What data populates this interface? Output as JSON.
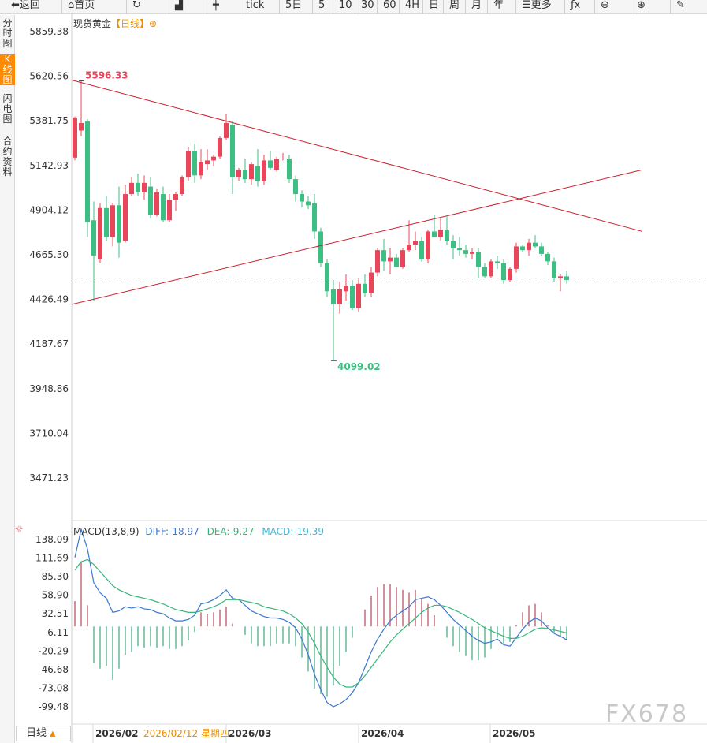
{
  "toolbar": {
    "items": [
      {
        "label": "返回",
        "icon": "back-icon"
      },
      {
        "label": "首页",
        "icon": "home-icon"
      },
      {
        "label": "",
        "icon": "refresh-icon"
      },
      {
        "label": "",
        "icon": "bar-chart-icon"
      },
      {
        "label": "",
        "icon": "candlestick-icon"
      },
      {
        "label": "tick"
      },
      {
        "label": "5日"
      },
      {
        "label": "5"
      },
      {
        "label": "10"
      },
      {
        "label": "30"
      },
      {
        "label": "60"
      },
      {
        "label": "4H"
      },
      {
        "label": "日"
      },
      {
        "label": "周"
      },
      {
        "label": "月"
      },
      {
        "label": "年"
      },
      {
        "label": "更多",
        "icon": "menu-icon"
      },
      {
        "label": "",
        "icon": "formula-icon"
      },
      {
        "label": "",
        "icon": "zoom-out-icon"
      },
      {
        "label": "",
        "icon": "zoom-in-icon"
      },
      {
        "label": "",
        "icon": "draw-icon"
      }
    ]
  },
  "side_tabs": [
    {
      "label": "分时图",
      "active": false
    },
    {
      "label": "K线图",
      "active": true
    },
    {
      "label": "闪电图",
      "active": false
    },
    {
      "label": "合约资料",
      "active": false
    }
  ],
  "chart": {
    "instrument": "现货黄金",
    "period_tag": "【日线】",
    "plus_icon": "add-circle-icon",
    "colors": {
      "up": "#e8475b",
      "down": "#3dbf83",
      "trendline": "#cc1f2f",
      "last_price": "#2e8ba3",
      "diff": "#3a78d0",
      "dea": "#38b57a"
    }
  },
  "macd": {
    "label": "MACD(13,8,9)",
    "diff": "DIFF:-18.97",
    "dea": "DEA:-9.27",
    "macd": "MACD:-19.39",
    "settings_icon": "sun-settings-icon"
  },
  "bottom": {
    "period_button": "日线",
    "arrow_icon": "triangle-up-icon",
    "crosshair_date": "2026/02/12 星期四"
  },
  "watermark": "FX678",
  "chart_data": [
    {
      "type": "candlestick",
      "title": "现货黄金【日线】",
      "y_ticks": [
        "5859.38",
        "5620.56",
        "5381.75",
        "5142.93",
        "4904.12",
        "4665.30",
        "4426.49",
        "4187.67",
        "3948.86",
        "3710.04",
        "3471.23"
      ],
      "ylim": [
        3471.23,
        5859.38
      ],
      "x_ticks": [
        "2026/02",
        "2026/03",
        "2026/04",
        "2026/05"
      ],
      "annotations": [
        {
          "label": "5596.33",
          "value": 5596.33,
          "kind": "high"
        },
        {
          "label": "4099.02",
          "value": 4099.02,
          "kind": "low"
        }
      ],
      "last_price": 4520,
      "trendlines": [
        {
          "from": [
            0,
            5600
          ],
          "to": [
            90,
            4790
          ],
          "color": "#cc1f2f"
        },
        {
          "from": [
            0,
            4400
          ],
          "to": [
            90,
            5120
          ],
          "color": "#cc1f2f"
        }
      ],
      "candles": [
        {
          "o": 5185,
          "h": 5405,
          "l": 5170,
          "c": 5400
        },
        {
          "o": 5330,
          "h": 5596.33,
          "l": 5300,
          "c": 5370
        },
        {
          "o": 5380,
          "h": 5390,
          "l": 4760,
          "c": 4840
        },
        {
          "o": 4850,
          "h": 4950,
          "l": 4420,
          "c": 4660
        },
        {
          "o": 4640,
          "h": 4940,
          "l": 4620,
          "c": 4915
        },
        {
          "o": 4915,
          "h": 4980,
          "l": 4740,
          "c": 4760
        },
        {
          "o": 4760,
          "h": 4940,
          "l": 4710,
          "c": 4930
        },
        {
          "o": 4930,
          "h": 5030,
          "l": 4650,
          "c": 4730
        },
        {
          "o": 4740,
          "h": 5040,
          "l": 4730,
          "c": 4990
        },
        {
          "o": 4990,
          "h": 5080,
          "l": 4980,
          "c": 5050
        },
        {
          "o": 5050,
          "h": 5100,
          "l": 4980,
          "c": 5000
        },
        {
          "o": 5000,
          "h": 5090,
          "l": 4960,
          "c": 5050
        },
        {
          "o": 5030,
          "h": 5080,
          "l": 4860,
          "c": 4880
        },
        {
          "o": 4880,
          "h": 5020,
          "l": 4870,
          "c": 5000
        },
        {
          "o": 4990,
          "h": 5030,
          "l": 4840,
          "c": 4850
        },
        {
          "o": 4850,
          "h": 4990,
          "l": 4840,
          "c": 4960
        },
        {
          "o": 4960,
          "h": 5000,
          "l": 4900,
          "c": 4990
        },
        {
          "o": 4990,
          "h": 5090,
          "l": 4980,
          "c": 5080
        },
        {
          "o": 5080,
          "h": 5240,
          "l": 5060,
          "c": 5220
        },
        {
          "o": 5220,
          "h": 5260,
          "l": 5050,
          "c": 5090
        },
        {
          "o": 5090,
          "h": 5230,
          "l": 5070,
          "c": 5160
        },
        {
          "o": 5150,
          "h": 5230,
          "l": 5120,
          "c": 5170
        },
        {
          "o": 5170,
          "h": 5200,
          "l": 5140,
          "c": 5190
        },
        {
          "o": 5190,
          "h": 5300,
          "l": 5180,
          "c": 5290
        },
        {
          "o": 5290,
          "h": 5420,
          "l": 5280,
          "c": 5370
        },
        {
          "o": 5360,
          "h": 5380,
          "l": 4990,
          "c": 5080
        },
        {
          "o": 5080,
          "h": 5130,
          "l": 5060,
          "c": 5120
        },
        {
          "o": 5120,
          "h": 5180,
          "l": 5050,
          "c": 5070
        },
        {
          "o": 5070,
          "h": 5160,
          "l": 5040,
          "c": 5150
        },
        {
          "o": 5140,
          "h": 5230,
          "l": 5030,
          "c": 5060
        },
        {
          "o": 5060,
          "h": 5200,
          "l": 5040,
          "c": 5170
        },
        {
          "o": 5170,
          "h": 5220,
          "l": 5120,
          "c": 5130
        },
        {
          "o": 5120,
          "h": 5190,
          "l": 5110,
          "c": 5180
        },
        {
          "o": 5180,
          "h": 5210,
          "l": 5170,
          "c": 5180
        },
        {
          "o": 5180,
          "h": 5200,
          "l": 5050,
          "c": 5070
        },
        {
          "o": 5070,
          "h": 5090,
          "l": 4950,
          "c": 4990
        },
        {
          "o": 4990,
          "h": 5010,
          "l": 4920,
          "c": 4950
        },
        {
          "o": 4950,
          "h": 4980,
          "l": 4910,
          "c": 4930
        },
        {
          "o": 4940,
          "h": 4990,
          "l": 4750,
          "c": 4790
        },
        {
          "o": 4790,
          "h": 4810,
          "l": 4600,
          "c": 4620
        },
        {
          "o": 4620,
          "h": 4640,
          "l": 4440,
          "c": 4470
        },
        {
          "o": 4480,
          "h": 4530,
          "l": 4099.02,
          "c": 4400
        },
        {
          "o": 4400,
          "h": 4520,
          "l": 4350,
          "c": 4480
        },
        {
          "o": 4470,
          "h": 4560,
          "l": 4420,
          "c": 4500
        },
        {
          "o": 4500,
          "h": 4530,
          "l": 4370,
          "c": 4380
        },
        {
          "o": 4380,
          "h": 4540,
          "l": 4360,
          "c": 4510
        },
        {
          "o": 4510,
          "h": 4560,
          "l": 4440,
          "c": 4460
        },
        {
          "o": 4460,
          "h": 4600,
          "l": 4440,
          "c": 4570
        },
        {
          "o": 4570,
          "h": 4700,
          "l": 4550,
          "c": 4690
        },
        {
          "o": 4690,
          "h": 4750,
          "l": 4580,
          "c": 4630
        },
        {
          "o": 4630,
          "h": 4700,
          "l": 4560,
          "c": 4650
        },
        {
          "o": 4650,
          "h": 4670,
          "l": 4600,
          "c": 4600
        },
        {
          "o": 4600,
          "h": 4700,
          "l": 4590,
          "c": 4690
        },
        {
          "o": 4690,
          "h": 4850,
          "l": 4680,
          "c": 4720
        },
        {
          "o": 4720,
          "h": 4790,
          "l": 4690,
          "c": 4740
        },
        {
          "o": 4740,
          "h": 4760,
          "l": 4630,
          "c": 4640
        },
        {
          "o": 4640,
          "h": 4800,
          "l": 4620,
          "c": 4790
        },
        {
          "o": 4790,
          "h": 4880,
          "l": 4770,
          "c": 4760
        },
        {
          "o": 4760,
          "h": 4860,
          "l": 4740,
          "c": 4800
        },
        {
          "o": 4800,
          "h": 4870,
          "l": 4720,
          "c": 4740
        },
        {
          "o": 4740,
          "h": 4770,
          "l": 4640,
          "c": 4700
        },
        {
          "o": 4700,
          "h": 4760,
          "l": 4660,
          "c": 4690
        },
        {
          "o": 4690,
          "h": 4720,
          "l": 4650,
          "c": 4670
        },
        {
          "o": 4670,
          "h": 4700,
          "l": 4640,
          "c": 4680
        },
        {
          "o": 4680,
          "h": 4700,
          "l": 4540,
          "c": 4600
        },
        {
          "o": 4600,
          "h": 4620,
          "l": 4540,
          "c": 4550
        },
        {
          "o": 4550,
          "h": 4640,
          "l": 4540,
          "c": 4630
        },
        {
          "o": 4630,
          "h": 4660,
          "l": 4590,
          "c": 4620
        },
        {
          "o": 4620,
          "h": 4640,
          "l": 4510,
          "c": 4530
        },
        {
          "o": 4530,
          "h": 4600,
          "l": 4520,
          "c": 4590
        },
        {
          "o": 4590,
          "h": 4730,
          "l": 4570,
          "c": 4710
        },
        {
          "o": 4710,
          "h": 4720,
          "l": 4680,
          "c": 4690
        },
        {
          "o": 4690,
          "h": 4750,
          "l": 4660,
          "c": 4730
        },
        {
          "o": 4730,
          "h": 4770,
          "l": 4700,
          "c": 4710
        },
        {
          "o": 4710,
          "h": 4730,
          "l": 4660,
          "c": 4670
        },
        {
          "o": 4670,
          "h": 4680,
          "l": 4610,
          "c": 4630
        },
        {
          "o": 4630,
          "h": 4650,
          "l": 4520,
          "c": 4540
        },
        {
          "o": 4540,
          "h": 4560,
          "l": 4470,
          "c": 4550
        },
        {
          "o": 4550,
          "h": 4580,
          "l": 4510,
          "c": 4530
        }
      ]
    },
    {
      "type": "macd",
      "title": "MACD(13,8,9)",
      "y_ticks": [
        "138.09",
        "111.69",
        "85.30",
        "58.90",
        "32.51",
        "6.11",
        "-20.29",
        "-46.68",
        "-73.08",
        "-99.48"
      ],
      "ylim": [
        -120,
        145
      ],
      "series": [
        {
          "name": "DIFF",
          "values": [
            98,
            138,
            110,
            62,
            48,
            40,
            20,
            22,
            28,
            26,
            28,
            25,
            24,
            20,
            18,
            12,
            8,
            8,
            10,
            16,
            32,
            34,
            38,
            44,
            52,
            40,
            38,
            30,
            22,
            18,
            14,
            12,
            12,
            10,
            6,
            -2,
            -18,
            -40,
            -68,
            -90,
            -108,
            -114,
            -110,
            -104,
            -94,
            -80,
            -58,
            -36,
            -18,
            -4,
            8,
            16,
            22,
            28,
            38,
            40,
            42,
            38,
            30,
            20,
            10,
            2,
            -6,
            -14,
            -20,
            -24,
            -22,
            -18,
            -26,
            -28,
            -16,
            -4,
            6,
            12,
            8,
            -2,
            -10,
            -14,
            -19
          ]
        },
        {
          "name": "DEA",
          "values": [
            80,
            92,
            95,
            88,
            78,
            68,
            58,
            52,
            48,
            44,
            42,
            40,
            38,
            35,
            32,
            28,
            24,
            22,
            20,
            20,
            22,
            25,
            28,
            32,
            38,
            38,
            38,
            36,
            34,
            32,
            28,
            26,
            24,
            22,
            18,
            12,
            4,
            -8,
            -24,
            -42,
            -58,
            -72,
            -82,
            -86,
            -86,
            -80,
            -70,
            -58,
            -46,
            -34,
            -22,
            -12,
            -4,
            4,
            12,
            20,
            26,
            30,
            30,
            28,
            24,
            20,
            15,
            10,
            4,
            -2,
            -6,
            -10,
            -14,
            -17,
            -17,
            -14,
            -9,
            -4,
            -2,
            -3,
            -5,
            -7,
            -9.27
          ]
        },
        {
          "name": "MACD",
          "values": [
            36,
            92,
            30,
            -52,
            -60,
            -56,
            -76,
            -60,
            -40,
            -36,
            -28,
            -30,
            -28,
            -30,
            -28,
            -32,
            -32,
            -28,
            -20,
            -8,
            20,
            18,
            20,
            24,
            28,
            4,
            0,
            -12,
            -24,
            -28,
            -28,
            -28,
            -24,
            -24,
            -24,
            -28,
            -44,
            -64,
            -88,
            -96,
            -100,
            -84,
            -56,
            -36,
            -16,
            0,
            24,
            44,
            56,
            60,
            60,
            56,
            52,
            48,
            52,
            40,
            32,
            16,
            0,
            -16,
            -28,
            -36,
            -42,
            -48,
            -48,
            -44,
            -32,
            -16,
            -24,
            -22,
            2,
            20,
            30,
            32,
            20,
            2,
            -10,
            -14,
            -19.39
          ]
        }
      ]
    }
  ]
}
